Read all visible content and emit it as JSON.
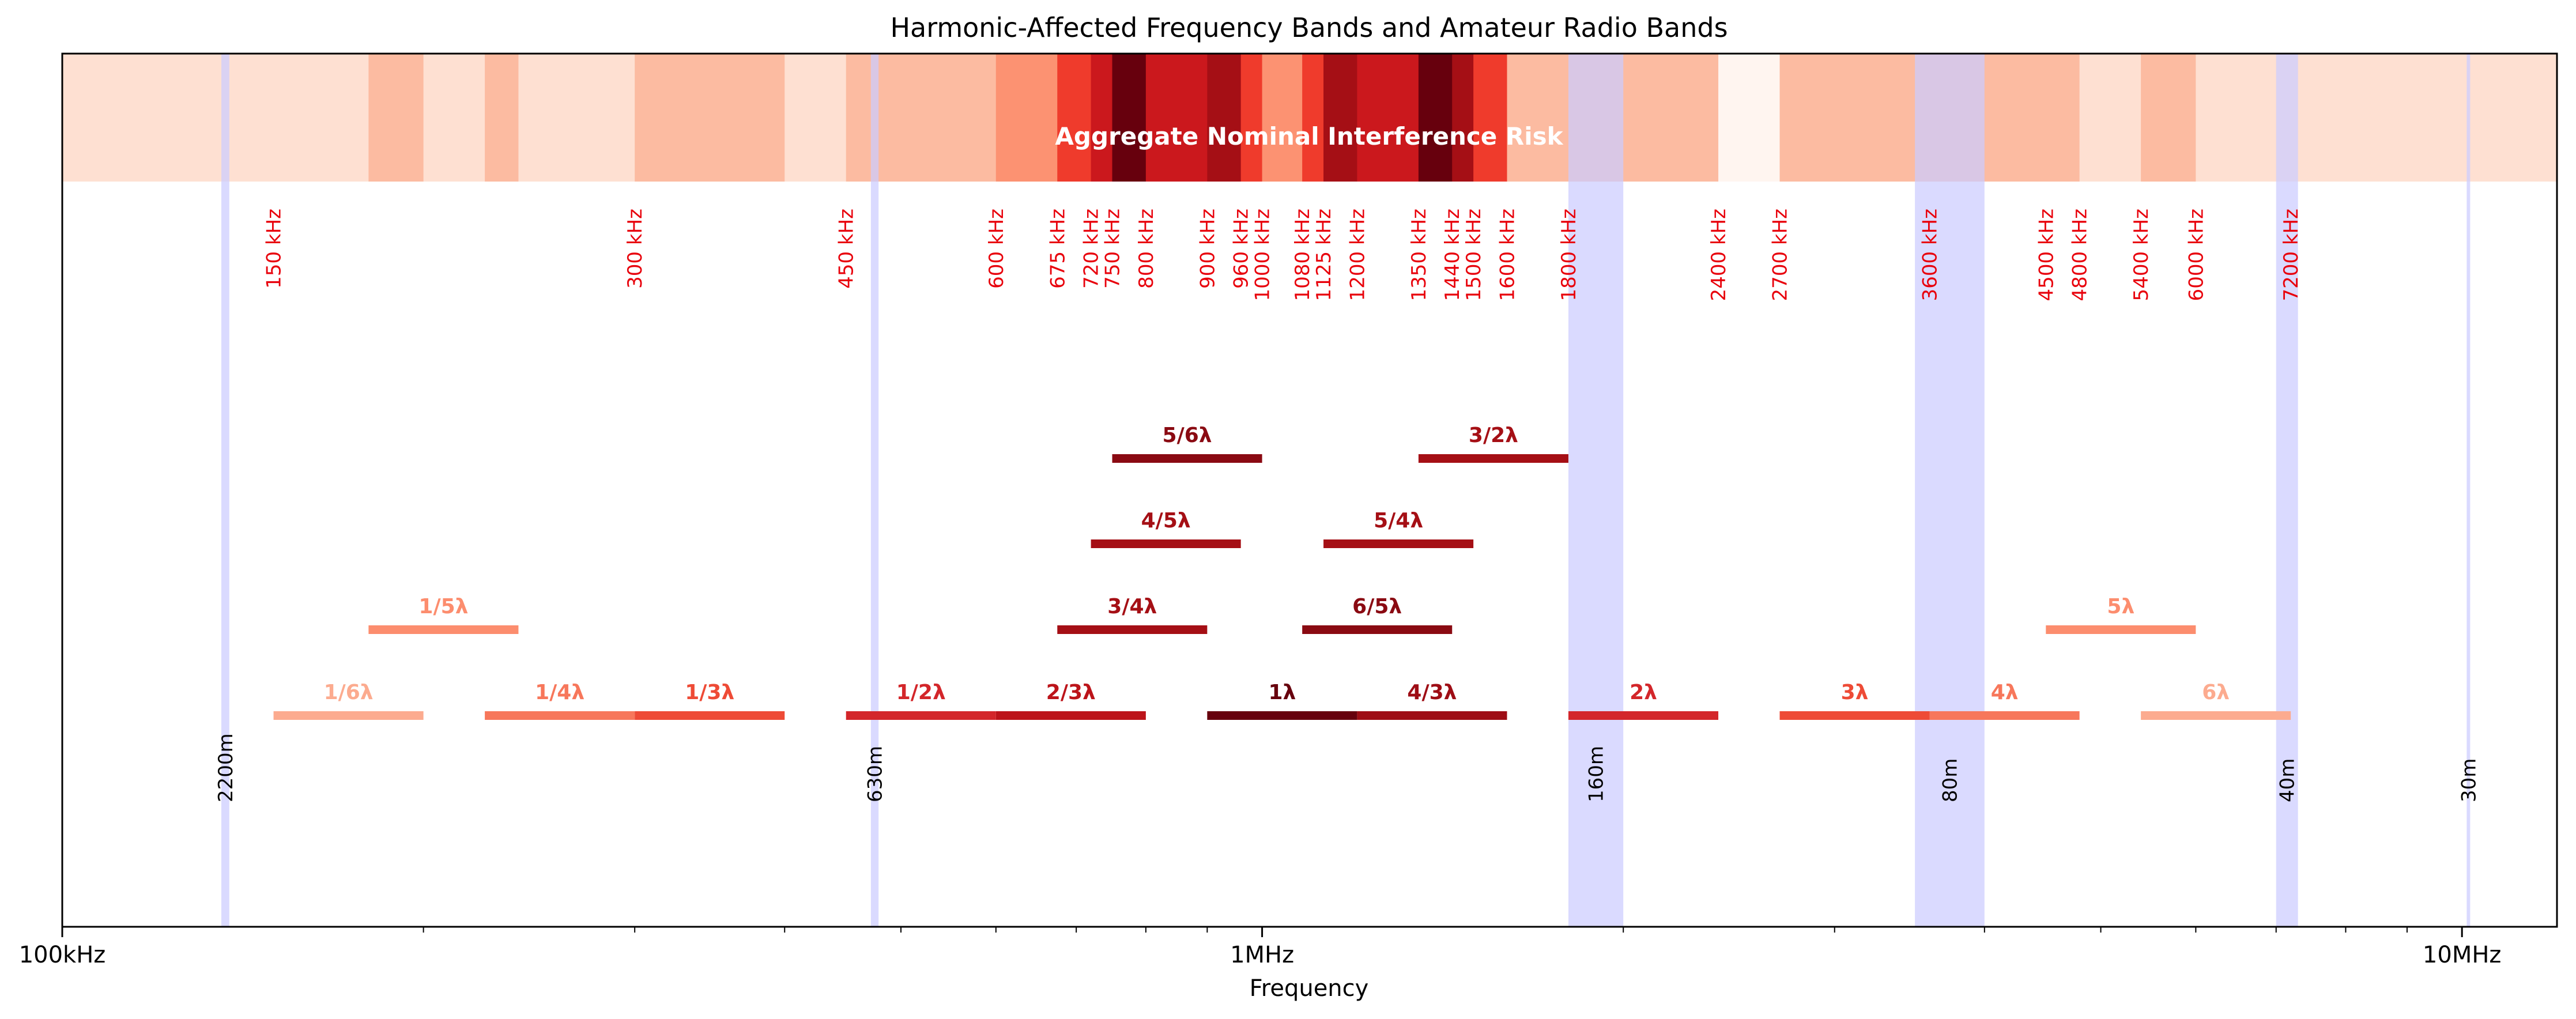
{
  "chart_data": {
    "type": "bar",
    "title": "Harmonic-Affected Frequency Bands and Amateur Radio Bands",
    "xlabel": "Frequency",
    "x_scale": "log",
    "xlim_khz": [
      100,
      12000
    ],
    "x_ticks": [
      {
        "khz": 100,
        "label": "100kHz"
      },
      {
        "khz": 1000,
        "label": "1MHz"
      },
      {
        "khz": 10000,
        "label": "10MHz"
      }
    ],
    "heat_strip": {
      "label": "Aggregate Nominal Interference Risk",
      "cells": [
        {
          "from": 100,
          "to": 150,
          "level": 1
        },
        {
          "from": 150,
          "to": 180,
          "level": 2
        },
        {
          "from": 180,
          "to": 200,
          "level": 3
        },
        {
          "from": 200,
          "to": 225,
          "level": 2
        },
        {
          "from": 225,
          "to": 240,
          "level": 4
        },
        {
          "from": 240,
          "to": 300,
          "level": 2
        },
        {
          "from": 300,
          "to": 400,
          "level": 3
        },
        {
          "from": 400,
          "to": 450,
          "level": 1
        },
        {
          "from": 450,
          "to": 600,
          "level": 4
        },
        {
          "from": 600,
          "to": 675,
          "level": 5
        },
        {
          "from": 675,
          "to": 720,
          "level": 8
        },
        {
          "from": 720,
          "to": 750,
          "level": 10
        },
        {
          "from": 750,
          "to": 800,
          "level": 13
        },
        {
          "from": 800,
          "to": 900,
          "level": 10
        },
        {
          "from": 900,
          "to": 960,
          "level": 11
        },
        {
          "from": 960,
          "to": 1000,
          "level": 8
        },
        {
          "from": 1000,
          "to": 1080,
          "level": 5
        },
        {
          "from": 1080,
          "to": 1125,
          "level": 8
        },
        {
          "from": 1125,
          "to": 1200,
          "level": 11
        },
        {
          "from": 1200,
          "to": 1350,
          "level": 10
        },
        {
          "from": 1350,
          "to": 1440,
          "level": 13
        },
        {
          "from": 1440,
          "to": 1500,
          "level": 11
        },
        {
          "from": 1500,
          "to": 1600,
          "level": 8
        },
        {
          "from": 1600,
          "to": 1800,
          "level": 4
        },
        {
          "from": 1800,
          "to": 2400,
          "level": 3
        },
        {
          "from": 2400,
          "to": 2700,
          "level": 0
        },
        {
          "from": 2700,
          "to": 4500,
          "level": 3
        },
        {
          "from": 4500,
          "to": 4800,
          "level": 4
        },
        {
          "from": 4800,
          "to": 5400,
          "level": 2
        },
        {
          "from": 5400,
          "to": 6000,
          "level": 4
        },
        {
          "from": 6000,
          "to": 12000,
          "level": 1
        }
      ]
    },
    "boundary_labels": [
      {
        "khz": 150,
        "label": "150 kHz"
      },
      {
        "khz": 300,
        "label": "300 kHz"
      },
      {
        "khz": 450,
        "label": "450 kHz"
      },
      {
        "khz": 600,
        "label": "600 kHz"
      },
      {
        "khz": 675,
        "label": "675 kHz"
      },
      {
        "khz": 720,
        "label": "720 kHz"
      },
      {
        "khz": 750,
        "label": "750 kHz"
      },
      {
        "khz": 800,
        "label": "800 kHz"
      },
      {
        "khz": 900,
        "label": "900 kHz"
      },
      {
        "khz": 960,
        "label": "960 kHz"
      },
      {
        "khz": 1000,
        "label": "1000 kHz"
      },
      {
        "khz": 1080,
        "label": "1080 kHz"
      },
      {
        "khz": 1125,
        "label": "1125 kHz"
      },
      {
        "khz": 1200,
        "label": "1200 kHz"
      },
      {
        "khz": 1350,
        "label": "1350 kHz"
      },
      {
        "khz": 1440,
        "label": "1440 kHz"
      },
      {
        "khz": 1500,
        "label": "1500 kHz"
      },
      {
        "khz": 1600,
        "label": "1600 kHz"
      },
      {
        "khz": 1800,
        "label": "1800 kHz"
      },
      {
        "khz": 2400,
        "label": "2400 kHz"
      },
      {
        "khz": 2700,
        "label": "2700 kHz"
      },
      {
        "khz": 3600,
        "label": "3600 kHz"
      },
      {
        "khz": 4500,
        "label": "4500 kHz"
      },
      {
        "khz": 4800,
        "label": "4800 kHz"
      },
      {
        "khz": 5400,
        "label": "5400 kHz"
      },
      {
        "khz": 6000,
        "label": "6000 kHz"
      },
      {
        "khz": 7200,
        "label": "7200 kHz"
      }
    ],
    "amateur_bands": [
      {
        "name": "2200m",
        "from_khz": 135.7,
        "to_khz": 137.8
      },
      {
        "name": "630m",
        "from_khz": 472,
        "to_khz": 479
      },
      {
        "name": "160m",
        "from_khz": 1800,
        "to_khz": 2000
      },
      {
        "name": "80m",
        "from_khz": 3500,
        "to_khz": 4000
      },
      {
        "name": "40m",
        "from_khz": 7000,
        "to_khz": 7300
      },
      {
        "name": "30m",
        "from_khz": 10100,
        "to_khz": 10150
      }
    ],
    "harmonic_bands": [
      {
        "label": "1/6λ",
        "from_khz": 150,
        "to_khz": 200,
        "row": 0,
        "color": "#fcab8f"
      },
      {
        "label": "1/4λ",
        "from_khz": 225,
        "to_khz": 300,
        "row": 0,
        "color": "#f7775b"
      },
      {
        "label": "1/3λ",
        "from_khz": 300,
        "to_khz": 400,
        "row": 0,
        "color": "#ee4b36"
      },
      {
        "label": "1/2λ",
        "from_khz": 450,
        "to_khz": 600,
        "row": 0,
        "color": "#d3262a"
      },
      {
        "label": "2/3λ",
        "from_khz": 600,
        "to_khz": 800,
        "row": 0,
        "color": "#bc141a"
      },
      {
        "label": "1λ",
        "from_khz": 900,
        "to_khz": 1200,
        "row": 0,
        "color": "#67000d"
      },
      {
        "label": "4/3λ",
        "from_khz": 1200,
        "to_khz": 1600,
        "row": 0,
        "color": "#9e0d15"
      },
      {
        "label": "2λ",
        "from_khz": 1800,
        "to_khz": 2400,
        "row": 0,
        "color": "#d3262a"
      },
      {
        "label": "3λ",
        "from_khz": 2700,
        "to_khz": 3600,
        "row": 0,
        "color": "#ee4b36"
      },
      {
        "label": "4λ",
        "from_khz": 3600,
        "to_khz": 4800,
        "row": 0,
        "color": "#f7775b"
      },
      {
        "label": "6λ",
        "from_khz": 5400,
        "to_khz": 7200,
        "row": 0,
        "color": "#fcab8f"
      },
      {
        "label": "1/5λ",
        "from_khz": 180,
        "to_khz": 240,
        "row": 1,
        "color": "#fc8d6e"
      },
      {
        "label": "3/4λ",
        "from_khz": 675,
        "to_khz": 900,
        "row": 1,
        "color": "#a50f15"
      },
      {
        "label": "6/5λ",
        "from_khz": 1080,
        "to_khz": 1440,
        "row": 1,
        "color": "#8a0a12"
      },
      {
        "label": "5λ",
        "from_khz": 4500,
        "to_khz": 6000,
        "row": 1,
        "color": "#fc8d6e"
      },
      {
        "label": "4/5λ",
        "from_khz": 720,
        "to_khz": 960,
        "row": 2,
        "color": "#a50f15"
      },
      {
        "label": "5/4λ",
        "from_khz": 1125,
        "to_khz": 1500,
        "row": 2,
        "color": "#a50f15"
      },
      {
        "label": "5/6λ",
        "from_khz": 750,
        "to_khz": 1000,
        "row": 3,
        "color": "#8a0a12"
      },
      {
        "label": "3/2λ",
        "from_khz": 1350,
        "to_khz": 1800,
        "row": 3,
        "color": "#a50f15"
      }
    ],
    "colors": {
      "heat_scale": [
        "#fff5f0",
        "#fee0d2",
        "#fcbba1",
        "#fc9272",
        "#fb6a4a",
        "#ef3b2c",
        "#cb181d",
        "#a50f15",
        "#67000d"
      ],
      "amateur_band": "#ccccff",
      "boundary_label": "#e8000b",
      "harmonic_label_dark": "#8b0000"
    },
    "grid": false,
    "legend": "none"
  }
}
